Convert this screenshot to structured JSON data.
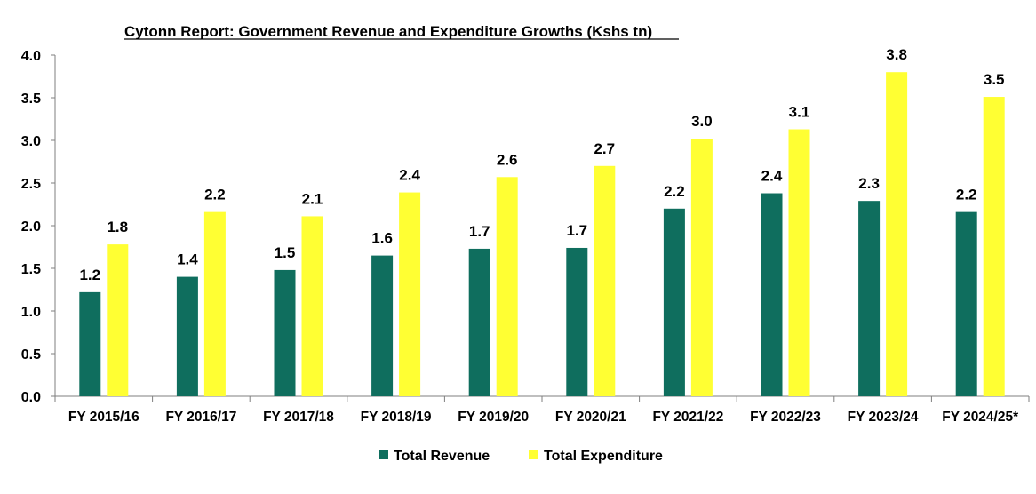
{
  "chart_data": {
    "type": "bar",
    "title": "Cytonn Report: Government Revenue and Expenditure Growths (Kshs tn)",
    "xlabel": "",
    "ylabel": "",
    "ylim": [
      0,
      4.0
    ],
    "yticks": [
      "0.0",
      "0.5",
      "1.0",
      "1.5",
      "2.0",
      "2.5",
      "3.0",
      "3.5",
      "4.0"
    ],
    "categories": [
      "FY 2015/16",
      "FY 2016/17",
      "FY 2017/18",
      "FY 2018/19",
      "FY 2019/20",
      "FY 2020/21",
      "FY 2021/22",
      "FY 2022/23",
      "FY 2023/24",
      "FY 2024/25*"
    ],
    "series": [
      {
        "name": "Total Revenue",
        "color": "#0f6e5e",
        "values": [
          1.22,
          1.4,
          1.48,
          1.65,
          1.73,
          1.74,
          2.2,
          2.38,
          2.29,
          2.16
        ],
        "labels": [
          "1.2",
          "1.4",
          "1.5",
          "1.6",
          "1.7",
          "1.7",
          "2.2",
          "2.4",
          "2.3",
          "2.2"
        ]
      },
      {
        "name": "Total Expenditure",
        "color": "#ffff33",
        "values": [
          1.78,
          2.16,
          2.11,
          2.39,
          2.57,
          2.7,
          3.02,
          3.13,
          3.8,
          3.51
        ],
        "labels": [
          "1.8",
          "2.2",
          "2.1",
          "2.4",
          "2.6",
          "2.7",
          "3.0",
          "3.1",
          "3.8",
          "3.5"
        ]
      }
    ],
    "grid": false,
    "legend": "bottom"
  }
}
